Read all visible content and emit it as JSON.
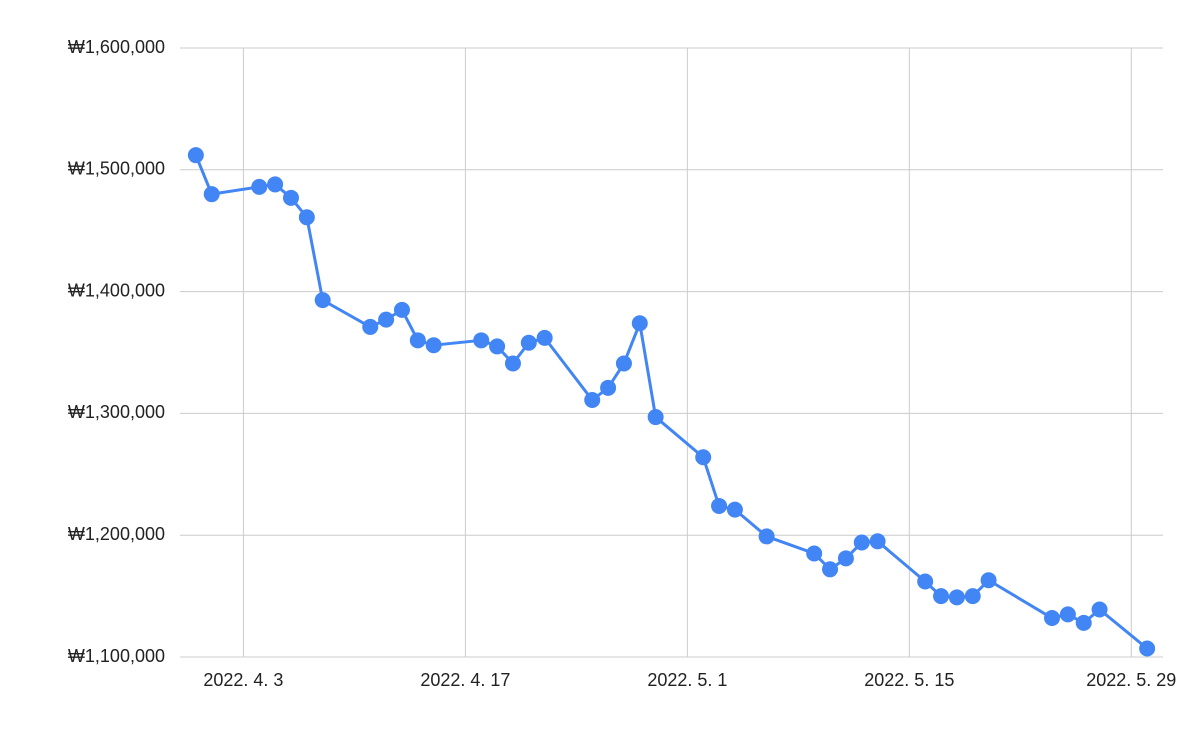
{
  "chart_data": {
    "type": "line",
    "color": "#4285f4",
    "grid": true,
    "x": [
      "2022-03-31",
      "2022-04-01",
      "2022-04-04",
      "2022-04-05",
      "2022-04-06",
      "2022-04-07",
      "2022-04-08",
      "2022-04-11",
      "2022-04-12",
      "2022-04-13",
      "2022-04-14",
      "2022-04-15",
      "2022-04-18",
      "2022-04-19",
      "2022-04-20",
      "2022-04-21",
      "2022-04-22",
      "2022-04-25",
      "2022-04-26",
      "2022-04-27",
      "2022-04-28",
      "2022-04-29",
      "2022-05-02",
      "2022-05-03",
      "2022-05-04",
      "2022-05-06",
      "2022-05-09",
      "2022-05-10",
      "2022-05-11",
      "2022-05-12",
      "2022-05-13",
      "2022-05-16",
      "2022-05-17",
      "2022-05-18",
      "2022-05-19",
      "2022-05-20",
      "2022-05-24",
      "2022-05-25",
      "2022-05-26",
      "2022-05-27",
      "2022-05-30"
    ],
    "values": [
      1512000,
      1480000,
      1486000,
      1488000,
      1477000,
      1461000,
      1393000,
      1371000,
      1377000,
      1385000,
      1360000,
      1356000,
      1360000,
      1355000,
      1341000,
      1358000,
      1362000,
      1311000,
      1321000,
      1341000,
      1374000,
      1297000,
      1264000,
      1224000,
      1221000,
      1199000,
      1185000,
      1172000,
      1181000,
      1194000,
      1195000,
      1162000,
      1150000,
      1149000,
      1150000,
      1163000,
      1132000,
      1135000,
      1128000,
      1139000,
      1107000
    ],
    "xlim": [
      "2022-03-30",
      "2022-05-31"
    ],
    "xticks": [
      {
        "value": "2022-04-03",
        "label": "2022. 4. 3"
      },
      {
        "value": "2022-04-17",
        "label": "2022. 4. 17"
      },
      {
        "value": "2022-05-01",
        "label": "2022. 5. 1"
      },
      {
        "value": "2022-05-15",
        "label": "2022. 5. 15"
      },
      {
        "value": "2022-05-29",
        "label": "2022. 5. 29"
      }
    ],
    "ylim": [
      1100000,
      1600000
    ],
    "yticks": [
      {
        "value": 1100000,
        "label": "₩1,100,000"
      },
      {
        "value": 1200000,
        "label": "₩1,200,000"
      },
      {
        "value": 1300000,
        "label": "₩1,300,000"
      },
      {
        "value": 1400000,
        "label": "₩1,400,000"
      },
      {
        "value": 1500000,
        "label": "₩1,500,000"
      },
      {
        "value": 1600000,
        "label": "₩1,600,000"
      }
    ]
  }
}
